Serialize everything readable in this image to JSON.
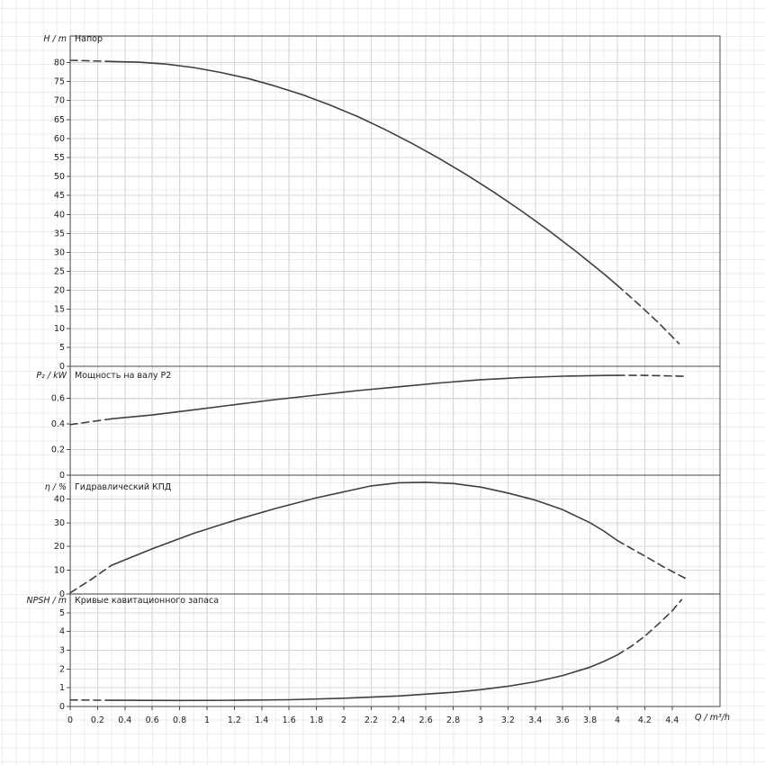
{
  "chart_data": {
    "type": "line",
    "title": "",
    "xlabel": "Q / m³/h",
    "xlim": [
      0,
      4.75
    ],
    "xticks": [
      0,
      0.2,
      0.4,
      0.6,
      0.8,
      1,
      1.2,
      1.4,
      1.6,
      1.8,
      2,
      2.2,
      2.4,
      2.6,
      2.8,
      3,
      3.2,
      3.4,
      3.6,
      3.8,
      4,
      4.2,
      4.4
    ],
    "grid": true,
    "line_color": "#3b3f46",
    "panels": [
      {
        "title": "Напор",
        "ylabel": "H / m",
        "ylim": [
          0,
          87
        ],
        "yticks": [
          0,
          5,
          10,
          15,
          20,
          25,
          30,
          35,
          40,
          45,
          50,
          55,
          60,
          65,
          70,
          75,
          80
        ],
        "series": [
          {
            "name": "head-curve-dashed-left",
            "style": "dashed",
            "points": [
              [
                0,
                80.6
              ],
              [
                0.3,
                80.3
              ]
            ]
          },
          {
            "name": "head-curve",
            "style": "solid",
            "points": [
              [
                0.3,
                80.3
              ],
              [
                0.5,
                80.1
              ],
              [
                0.7,
                79.6
              ],
              [
                0.9,
                78.7
              ],
              [
                1.1,
                77.4
              ],
              [
                1.3,
                75.8
              ],
              [
                1.5,
                73.8
              ],
              [
                1.7,
                71.5
              ],
              [
                1.9,
                68.8
              ],
              [
                2.1,
                65.8
              ],
              [
                2.3,
                62.4
              ],
              [
                2.5,
                58.7
              ],
              [
                2.7,
                54.7
              ],
              [
                2.9,
                50.4
              ],
              [
                3.1,
                45.8
              ],
              [
                3.3,
                40.9
              ],
              [
                3.5,
                35.7
              ],
              [
                3.7,
                30.2
              ],
              [
                3.9,
                24.4
              ],
              [
                4,
                21.3
              ]
            ]
          },
          {
            "name": "head-curve-dashed-right",
            "style": "dashed",
            "points": [
              [
                4,
                21.3
              ],
              [
                4.15,
                16.5
              ],
              [
                4.3,
                11.5
              ],
              [
                4.45,
                6
              ]
            ]
          }
        ]
      },
      {
        "title": "Мощность на валу P2",
        "ylabel": "P₂ / kW",
        "ylim": [
          0,
          0.85
        ],
        "yticks": [
          0,
          0.2,
          0.4,
          0.6
        ],
        "series": [
          {
            "name": "shaft-power-dashed-left",
            "style": "dashed",
            "points": [
              [
                0,
                0.395
              ],
              [
                0.3,
                0.44
              ]
            ]
          },
          {
            "name": "shaft-power-curve",
            "style": "solid",
            "points": [
              [
                0.3,
                0.44
              ],
              [
                0.6,
                0.47
              ],
              [
                0.9,
                0.51
              ],
              [
                1.2,
                0.55
              ],
              [
                1.5,
                0.59
              ],
              [
                1.8,
                0.625
              ],
              [
                2.1,
                0.66
              ],
              [
                2.4,
                0.69
              ],
              [
                2.7,
                0.72
              ],
              [
                3,
                0.745
              ],
              [
                3.3,
                0.762
              ],
              [
                3.6,
                0.773
              ],
              [
                3.9,
                0.778
              ],
              [
                4,
                0.779
              ]
            ]
          },
          {
            "name": "shaft-power-dashed-right",
            "style": "dashed",
            "points": [
              [
                4,
                0.779
              ],
              [
                4.2,
                0.779
              ],
              [
                4.5,
                0.772
              ]
            ]
          }
        ]
      },
      {
        "title": "Гидравлический КПД",
        "ylabel": "η / %",
        "ylim": [
          0,
          50
        ],
        "yticks": [
          0,
          10,
          20,
          30,
          40
        ],
        "series": [
          {
            "name": "efficiency-dashed-left",
            "style": "dashed",
            "points": [
              [
                0,
                0.5
              ],
              [
                0.15,
                6
              ],
              [
                0.3,
                12
              ]
            ]
          },
          {
            "name": "efficiency-curve",
            "style": "solid",
            "points": [
              [
                0.3,
                12
              ],
              [
                0.6,
                19
              ],
              [
                0.9,
                25.5
              ],
              [
                1.2,
                31
              ],
              [
                1.5,
                36
              ],
              [
                1.8,
                40.5
              ],
              [
                2,
                43
              ],
              [
                2.2,
                45.5
              ],
              [
                2.4,
                46.8
              ],
              [
                2.6,
                47
              ],
              [
                2.8,
                46.5
              ],
              [
                3,
                45
              ],
              [
                3.2,
                42.5
              ],
              [
                3.4,
                39.5
              ],
              [
                3.6,
                35.5
              ],
              [
                3.8,
                30
              ],
              [
                3.9,
                26.5
              ],
              [
                4,
                22.5
              ]
            ]
          },
          {
            "name": "efficiency-dashed-right",
            "style": "dashed",
            "points": [
              [
                4,
                22.5
              ],
              [
                4.2,
                16
              ],
              [
                4.35,
                11
              ],
              [
                4.5,
                6.5
              ]
            ]
          }
        ]
      },
      {
        "title": "Кривые кавитационного запаса",
        "ylabel": "NPSH / m",
        "ylim": [
          0,
          6
        ],
        "yticks": [
          0,
          1,
          2,
          3,
          4,
          5
        ],
        "series": [
          {
            "name": "npsh-dashed-left",
            "style": "dashed",
            "points": [
              [
                0,
                0.35
              ],
              [
                0.3,
                0.33
              ]
            ]
          },
          {
            "name": "npsh-curve",
            "style": "solid",
            "points": [
              [
                0.3,
                0.33
              ],
              [
                0.8,
                0.32
              ],
              [
                1.2,
                0.33
              ],
              [
                1.6,
                0.36
              ],
              [
                2,
                0.44
              ],
              [
                2.4,
                0.56
              ],
              [
                2.8,
                0.76
              ],
              [
                3,
                0.9
              ],
              [
                3.2,
                1.08
              ],
              [
                3.4,
                1.32
              ],
              [
                3.6,
                1.65
              ],
              [
                3.8,
                2.1
              ],
              [
                3.9,
                2.4
              ],
              [
                4,
                2.75
              ]
            ]
          },
          {
            "name": "npsh-dashed-right",
            "style": "dashed",
            "points": [
              [
                4,
                2.75
              ],
              [
                4.1,
                3.2
              ],
              [
                4.2,
                3.75
              ],
              [
                4.3,
                4.4
              ],
              [
                4.4,
                5.1
              ],
              [
                4.47,
                5.7
              ]
            ]
          }
        ]
      }
    ]
  }
}
